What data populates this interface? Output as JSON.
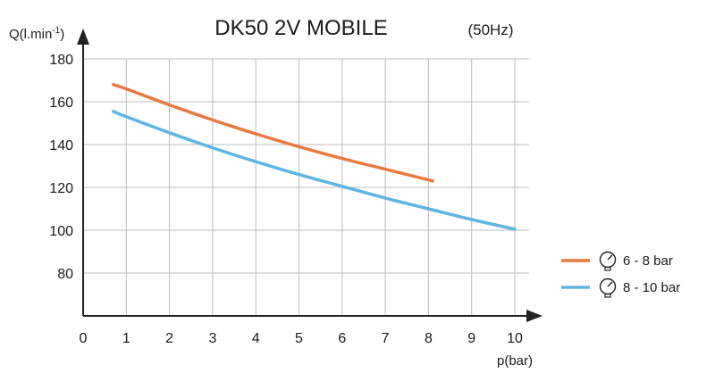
{
  "chart_data": {
    "type": "line",
    "title": "DK50 2V MOBILE",
    "subtitle": "(50Hz)",
    "ylabel": "Q(l.min",
    "ylabel_sup": "-1",
    "ylabel_close": ")",
    "xlabel": "p(bar)",
    "xlim": [
      0,
      10
    ],
    "ylim": [
      60,
      185
    ],
    "xticks": [
      "0",
      "1",
      "2",
      "3",
      "4",
      "5",
      "6",
      "7",
      "8",
      "9",
      "10"
    ],
    "yticks": [
      "80",
      "100",
      "120",
      "140",
      "160",
      "180"
    ],
    "grid": true,
    "legend_position": "right",
    "series": [
      {
        "name": "6 - 8 bar",
        "color": "#ea7841",
        "x": [
          0.7,
          1,
          2,
          3,
          4,
          5,
          6,
          7,
          8.1
        ],
        "y": [
          168,
          166,
          158.5,
          151.5,
          145,
          139,
          133.5,
          128.5,
          123
        ]
      },
      {
        "name": "8 - 10 bar",
        "color": "#60b5e3",
        "x": [
          0.7,
          1,
          2,
          3,
          4,
          5,
          6,
          7,
          8,
          9,
          10
        ],
        "y": [
          155.5,
          153,
          145.5,
          138.5,
          132,
          126,
          120.5,
          115,
          110,
          105,
          100.5
        ]
      }
    ]
  },
  "legend_icon": "pressure-gauge-icon"
}
